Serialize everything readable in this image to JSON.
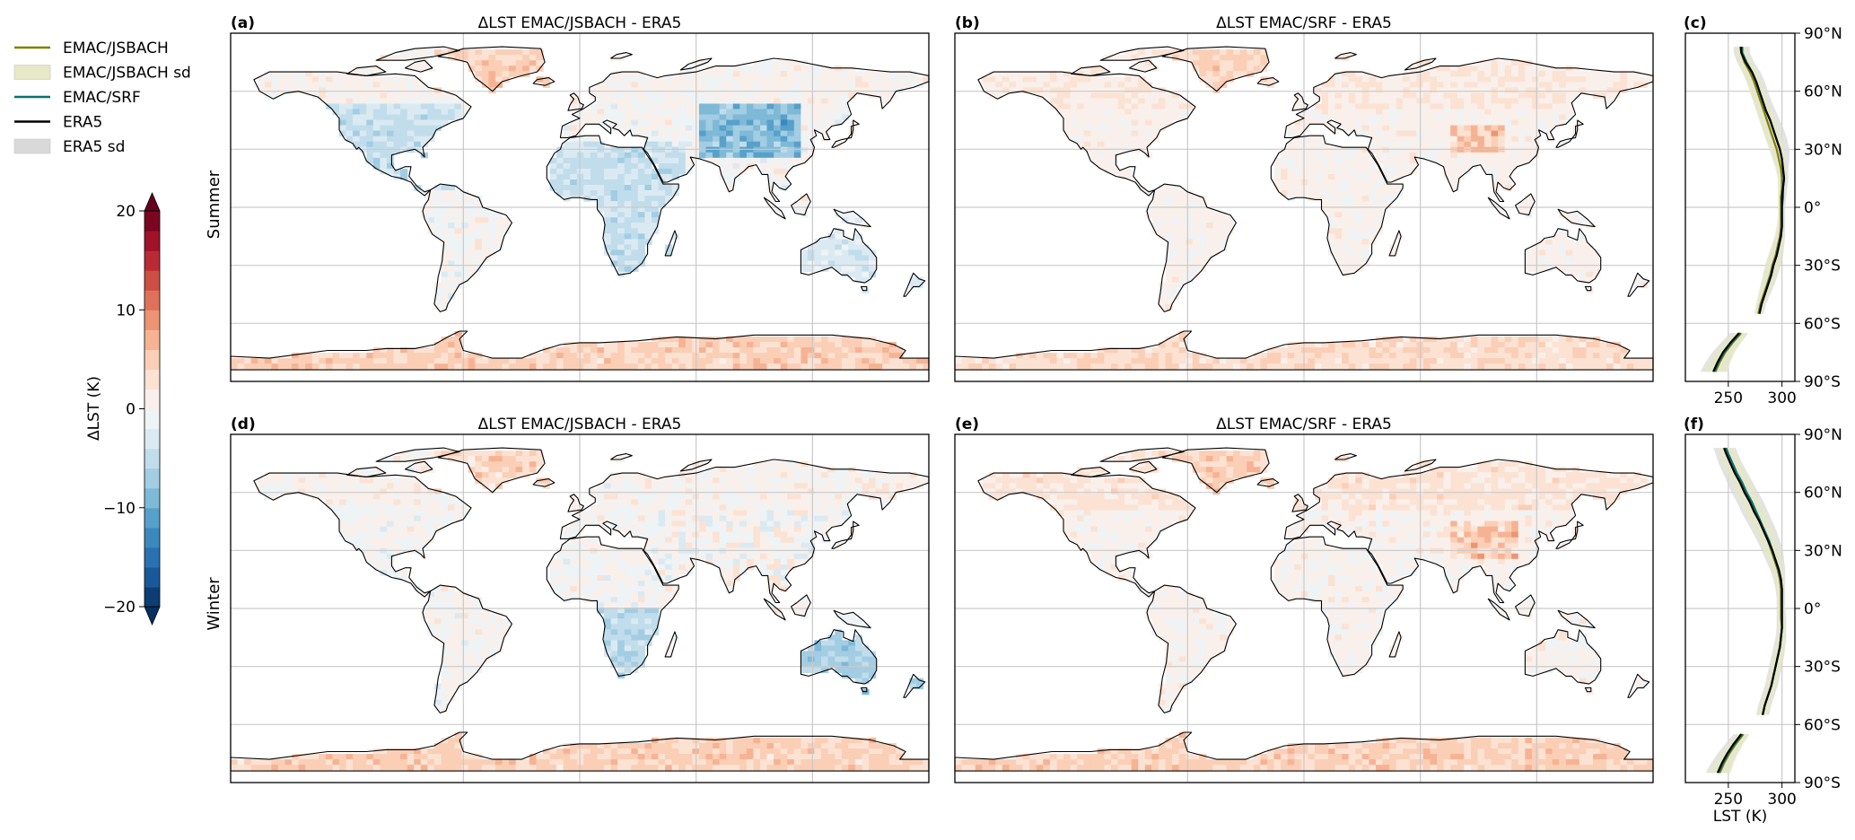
{
  "legend": {
    "items": [
      {
        "label": "EMAC/JSBACH",
        "kind": "line",
        "color": "#7f7f00"
      },
      {
        "label": "EMAC/JSBACH sd",
        "kind": "patch",
        "color": "#e6e8c6"
      },
      {
        "label": "EMAC/SRF",
        "kind": "line",
        "color": "#0f6f6f"
      },
      {
        "label": "ERA5",
        "kind": "line",
        "color": "#000000"
      },
      {
        "label": "ERA5 sd",
        "kind": "patch",
        "color": "#d9d9d9"
      }
    ]
  },
  "colorbar": {
    "label": "ΔLST (K)",
    "ticks": [
      {
        "value": 20,
        "label": "20"
      },
      {
        "value": 10,
        "label": "10"
      },
      {
        "value": 0,
        "label": "0"
      },
      {
        "value": -10,
        "label": "−10"
      },
      {
        "value": -20,
        "label": "−20"
      }
    ],
    "range": [
      -20,
      20
    ],
    "levels": 20,
    "colormap": "RdBu_r",
    "extend": "both"
  },
  "row_labels": [
    "Summer",
    "Winter"
  ],
  "maps": [
    {
      "panel": "(a)",
      "title": "ΔLST EMAC/JSBACH - ERA5",
      "season": "Summer"
    },
    {
      "panel": "(b)",
      "title": "ΔLST EMAC/SRF - ERA5",
      "season": "Summer"
    },
    {
      "panel": "(d)",
      "title": "ΔLST EMAC/JSBACH - ERA5",
      "season": "Winter"
    },
    {
      "panel": "(e)",
      "title": "ΔLST EMAC/SRF - ERA5",
      "season": "Winter"
    }
  ],
  "zonal_panels": [
    {
      "panel": "(c)",
      "season": "Summer"
    },
    {
      "panel": "(f)",
      "season": "Winter"
    }
  ],
  "zonal_axis": {
    "xlabel": "LST (K)",
    "xticks": [
      "250",
      "300"
    ],
    "xlim": [
      210,
      312
    ],
    "ylim": [
      -90,
      90
    ],
    "yticks": [
      {
        "value": 90,
        "label": "90°N"
      },
      {
        "value": 60,
        "label": "60°N"
      },
      {
        "value": 30,
        "label": "30°N"
      },
      {
        "value": 0,
        "label": "0°"
      },
      {
        "value": -30,
        "label": "30°S"
      },
      {
        "value": -60,
        "label": "60°S"
      },
      {
        "value": -90,
        "label": "90°S"
      }
    ]
  },
  "chart_data": [
    {
      "type": "line",
      "panel": "(c)",
      "title": "",
      "xlabel": "",
      "ylabel": "",
      "orientation": "latitude-vs-temperature",
      "xlim": [
        210,
        312
      ],
      "ylim": [
        -90,
        90
      ],
      "lat": [
        83,
        80,
        75,
        70,
        65,
        60,
        55,
        50,
        45,
        40,
        35,
        30,
        25,
        20,
        15,
        10,
        5,
        0,
        -5,
        -10,
        -15,
        -20,
        -25,
        -30,
        -35,
        -40,
        -45,
        -50,
        -55,
        -65,
        -70,
        -75,
        -80,
        -85
      ],
      "series": [
        {
          "name": "ERA5",
          "values": [
            262,
            262,
            266,
            272,
            276,
            279,
            282,
            285,
            289,
            292,
            295,
            298,
            300,
            301,
            302,
            301,
            300,
            300,
            300,
            300,
            299,
            297,
            295,
            292,
            290,
            287,
            284,
            281,
            279,
            260,
            252,
            245,
            240,
            236
          ],
          "sd_lower": [
            255,
            255,
            258,
            263,
            267,
            270,
            273,
            276,
            279,
            282,
            285,
            289,
            292,
            295,
            297,
            297,
            297,
            297,
            297,
            296,
            294,
            291,
            288,
            285,
            283,
            281,
            279,
            277,
            275,
            252,
            243,
            235,
            229,
            224
          ],
          "sd_upper": [
            270,
            270,
            274,
            280,
            284,
            287,
            290,
            294,
            298,
            302,
            305,
            307,
            307,
            306,
            306,
            305,
            304,
            303,
            303,
            303,
            303,
            302,
            301,
            299,
            296,
            293,
            289,
            285,
            283,
            268,
            261,
            255,
            251,
            248
          ]
        },
        {
          "name": "EMAC/JSBACH",
          "values": [
            261,
            262,
            265,
            270,
            274,
            277,
            280,
            283,
            286,
            289,
            292,
            295,
            297,
            299,
            300,
            300,
            299,
            299,
            299,
            299,
            298,
            296,
            294,
            291,
            289,
            286,
            283,
            280,
            278,
            262,
            254,
            247,
            242,
            238
          ],
          "sd_lower": [
            256,
            257,
            259,
            263,
            267,
            270,
            273,
            276,
            279,
            282,
            285,
            288,
            291,
            294,
            296,
            296,
            296,
            296,
            296,
            295,
            293,
            290,
            287,
            284,
            282,
            280,
            278,
            276,
            274,
            255,
            246,
            238,
            232,
            227
          ],
          "sd_upper": [
            268,
            268,
            272,
            277,
            281,
            284,
            287,
            291,
            294,
            297,
            300,
            302,
            303,
            303,
            303,
            303,
            302,
            302,
            302,
            302,
            302,
            301,
            300,
            298,
            295,
            292,
            288,
            284,
            282,
            269,
            262,
            256,
            252,
            249
          ]
        },
        {
          "name": "EMAC/SRF",
          "values": [
            263,
            263,
            267,
            272,
            276,
            279,
            282,
            285,
            289,
            292,
            295,
            298,
            300,
            301,
            302,
            301,
            301,
            300,
            300,
            300,
            299,
            297,
            295,
            292,
            290,
            287,
            284,
            281,
            279,
            261,
            253,
            246,
            241,
            237
          ]
        }
      ]
    },
    {
      "type": "line",
      "panel": "(f)",
      "title": "",
      "xlabel": "LST (K)",
      "ylabel": "",
      "orientation": "latitude-vs-temperature",
      "xlim": [
        210,
        312
      ],
      "ylim": [
        -90,
        90
      ],
      "lat": [
        83,
        80,
        75,
        70,
        65,
        60,
        55,
        50,
        45,
        40,
        35,
        30,
        25,
        20,
        15,
        10,
        5,
        0,
        -5,
        -10,
        -15,
        -20,
        -25,
        -30,
        -35,
        -40,
        -45,
        -50,
        -55,
        -65,
        -70,
        -75,
        -80,
        -85
      ],
      "series": [
        {
          "name": "ERA5",
          "values": [
            246,
            248,
            252,
            256,
            261,
            265,
            270,
            274,
            279,
            283,
            287,
            291,
            294,
            297,
            299,
            300,
            300,
            300,
            300,
            300,
            299,
            298,
            296,
            294,
            292,
            290,
            287,
            284,
            282,
            262,
            255,
            249,
            244,
            240
          ],
          "sd_lower": [
            236,
            238,
            241,
            245,
            249,
            253,
            258,
            262,
            267,
            272,
            277,
            281,
            285,
            289,
            292,
            294,
            295,
            295,
            295,
            295,
            294,
            292,
            290,
            288,
            286,
            284,
            281,
            278,
            276,
            255,
            247,
            240,
            234,
            229
          ],
          "sd_upper": [
            257,
            259,
            263,
            268,
            273,
            278,
            283,
            287,
            291,
            295,
            298,
            301,
            302,
            303,
            303,
            303,
            303,
            303,
            304,
            304,
            304,
            303,
            302,
            300,
            298,
            296,
            293,
            290,
            288,
            269,
            263,
            258,
            254,
            251
          ]
        },
        {
          "name": "EMAC/JSBACH",
          "values": [
            247,
            249,
            253,
            257,
            262,
            266,
            271,
            275,
            279,
            283,
            287,
            290,
            293,
            296,
            298,
            299,
            299,
            299,
            299,
            300,
            299,
            298,
            296,
            294,
            292,
            290,
            287,
            284,
            282,
            264,
            257,
            251,
            246,
            242
          ],
          "sd_lower": [
            240,
            242,
            245,
            249,
            254,
            258,
            262,
            266,
            270,
            275,
            279,
            283,
            287,
            290,
            293,
            295,
            296,
            296,
            296,
            296,
            295,
            293,
            291,
            289,
            287,
            285,
            282,
            279,
            277,
            258,
            250,
            243,
            237,
            232
          ],
          "sd_upper": [
            255,
            257,
            261,
            266,
            271,
            275,
            280,
            284,
            288,
            292,
            295,
            298,
            300,
            301,
            302,
            302,
            302,
            302,
            303,
            303,
            303,
            302,
            301,
            299,
            297,
            295,
            292,
            289,
            287,
            270,
            264,
            259,
            255,
            252
          ]
        },
        {
          "name": "EMAC/SRF",
          "values": [
            248,
            250,
            254,
            258,
            263,
            267,
            272,
            276,
            280,
            284,
            288,
            291,
            294,
            297,
            299,
            300,
            300,
            300,
            300,
            300,
            299,
            298,
            296,
            294,
            292,
            290,
            287,
            284,
            282,
            263,
            256,
            250,
            245,
            241
          ]
        }
      ]
    }
  ]
}
